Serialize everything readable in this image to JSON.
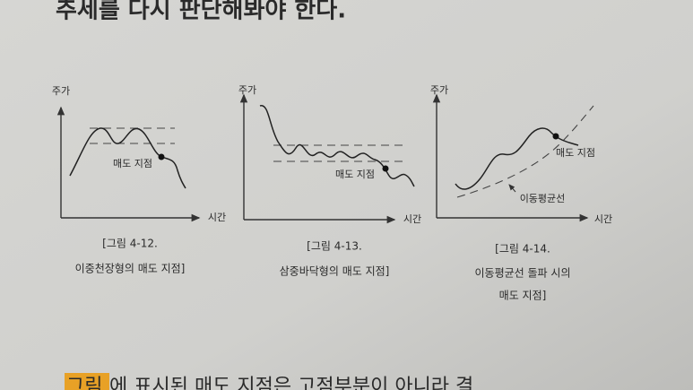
{
  "header": {
    "text": "추세를 다시 판단해봐야 한다."
  },
  "figures": [
    {
      "y_label": "주가",
      "x_label": "시간",
      "annotations": [
        "매도 지점"
      ],
      "caption": [
        "[그림 4-12.",
        "이중천장형의 매도 지점]"
      ]
    },
    {
      "y_label": "주가",
      "x_label": "시간",
      "annotations": [
        "매도 지점"
      ],
      "caption": [
        "[그림 4-13.",
        "삼중바닥형의 매도 지점]"
      ]
    },
    {
      "y_label": "주가",
      "x_label": "시간",
      "annotations": [
        "매도 지점",
        "이동평균선"
      ],
      "caption": [
        "[그림 4-14.",
        "이동평균선 돌파 시의",
        "매도 지점]"
      ]
    }
  ],
  "footer": {
    "highlight": "그림",
    "text": "에 표시된 매도 지점은 고점부분이 아니라 결"
  }
}
